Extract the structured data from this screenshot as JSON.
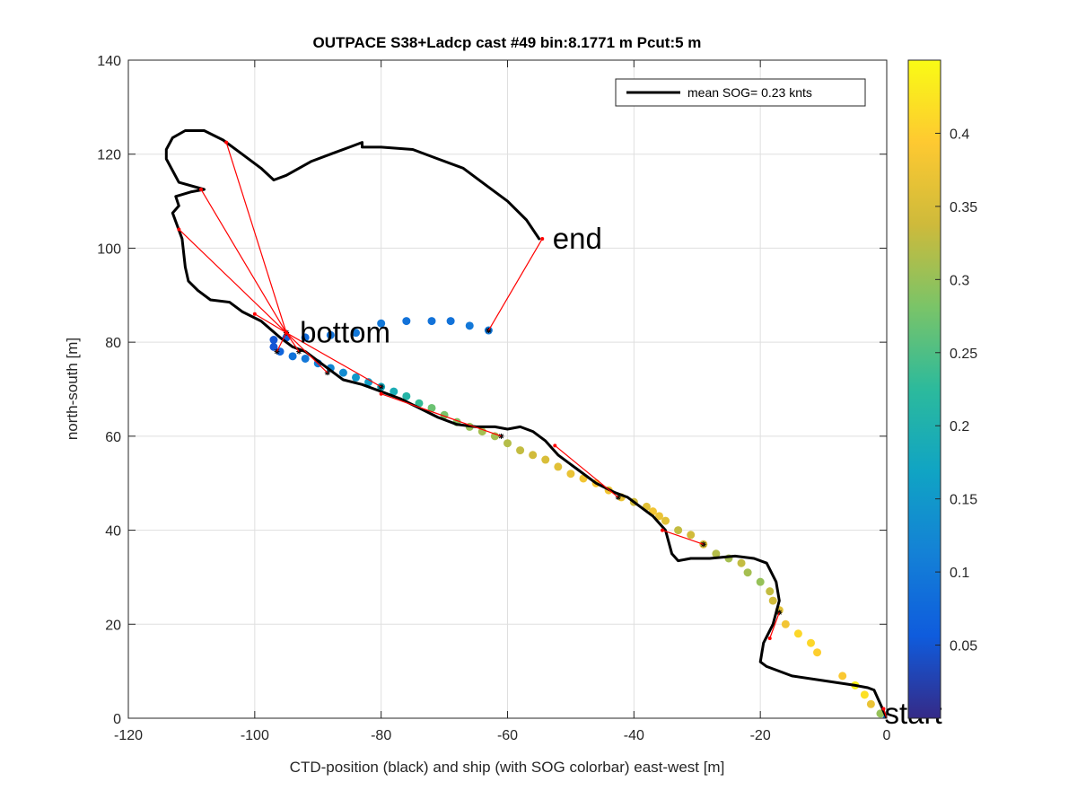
{
  "chart_data": {
    "type": "scatter",
    "title": "OUTPACE S38+Ladcp cast #49 bin:8.1771 m  Pcut:5 m",
    "xlabel": "CTD-position (black) and ship (with SOG colorbar) east-west [m]",
    "ylabel": "north-south [m]",
    "xlim": [
      -120,
      0
    ],
    "ylim": [
      0,
      140
    ],
    "xticks": [
      "-120",
      "-100",
      "-80",
      "-60",
      "-40",
      "-20",
      "0"
    ],
    "yticks": [
      "0",
      "20",
      "40",
      "60",
      "80",
      "100",
      "120",
      "140"
    ],
    "grid": true,
    "legend": {
      "placement": "top-right",
      "entry": "mean SOG=  0.23 knts"
    },
    "colorbar": {
      "range": [
        0,
        0.45
      ],
      "ticks": [
        "0.05",
        "0.1",
        "0.15",
        "0.2",
        "0.25",
        "0.3",
        "0.35",
        "0.4"
      ],
      "colormap": "parula"
    },
    "annotations": [
      {
        "text": "end",
        "x": -54,
        "y": 102
      },
      {
        "text": "bottom",
        "x": -94,
        "y": 82
      },
      {
        "text": "start",
        "x": -1.5,
        "y": 1
      }
    ],
    "ctd_track": {
      "name": "CTD-position",
      "color": "#000000",
      "x": [
        0,
        -1,
        -2,
        -3,
        -5,
        -10,
        -15,
        -19,
        -20,
        -19.5,
        -18,
        -17,
        -17.5,
        -19,
        -21,
        -24,
        -28,
        -31,
        -33,
        -34,
        -35,
        -37,
        -39,
        -41,
        -43,
        -46,
        -49,
        -52,
        -54,
        -56,
        -58,
        -60,
        -62,
        -65,
        -68,
        -71,
        -74,
        -77,
        -80,
        -83,
        -86,
        -88,
        -90,
        -92,
        -94,
        -96,
        -99,
        -102,
        -104,
        -107,
        -109,
        -110.5,
        -111,
        -111.5,
        -113,
        -112,
        -112.5,
        -110,
        -108,
        -112,
        -114,
        -114,
        -113,
        -111,
        -108,
        -105,
        -102,
        -99,
        -97,
        -95,
        -93,
        -91,
        -88,
        -85,
        -83,
        -83,
        -80,
        -75,
        -71,
        -67,
        -63,
        -60,
        -57,
        -55
      ],
      "y": [
        0,
        3,
        6,
        6.5,
        7,
        8,
        9,
        11,
        12,
        16,
        20,
        25,
        29,
        33,
        34,
        34.5,
        34,
        34,
        33.5,
        35,
        40,
        43,
        45,
        47,
        48,
        50,
        53,
        56,
        59,
        61,
        62,
        61.5,
        62,
        62,
        62.5,
        64,
        66,
        68,
        69.5,
        71,
        72,
        74,
        76,
        78,
        79,
        81,
        84.5,
        86.5,
        88.5,
        89,
        91,
        93,
        96,
        102,
        107.5,
        109,
        111,
        112,
        112.5,
        114,
        119,
        121,
        123.5,
        125,
        125,
        123,
        120,
        117,
        114.5,
        115.5,
        117,
        118.5,
        120,
        121.5,
        122.5,
        121.5,
        121.5,
        121,
        119,
        117,
        113,
        110,
        106,
        102
      ]
    },
    "ship_track": {
      "name": "ship (with SOG colorbar)",
      "x": [
        0,
        -1,
        -2.5,
        -3.5,
        -5,
        -7,
        -11,
        -12,
        -14,
        -16,
        -17,
        -18,
        -18.5,
        -20,
        -22,
        -23,
        -25,
        -27,
        -29,
        -31,
        -33,
        -35,
        -36,
        -37,
        -38,
        -40,
        -42,
        -44,
        -46,
        -48,
        -50,
        -52,
        -54,
        -56,
        -58,
        -60,
        -62,
        -64,
        -66,
        -68,
        -70,
        -72,
        -74,
        -76,
        -78,
        -80,
        -82,
        -84,
        -86,
        -88,
        -90,
        -92,
        -94,
        -96,
        -97,
        -97,
        -95,
        -92,
        -88,
        -84,
        -80,
        -76,
        -72,
        -69,
        -66,
        -63
      ],
      "y": [
        0,
        1,
        3,
        5,
        7,
        9,
        14,
        16,
        18,
        20,
        23,
        25,
        27,
        29,
        31,
        33,
        34,
        35,
        37,
        39,
        40,
        42,
        43,
        44,
        45,
        46,
        47,
        48.5,
        50,
        51,
        52,
        53.5,
        55,
        56,
        57,
        58.5,
        60,
        61,
        62,
        63,
        64.5,
        66,
        67,
        68.5,
        69.5,
        70.5,
        71.5,
        72.5,
        73.5,
        74.5,
        75.5,
        76.5,
        77,
        78,
        79,
        80.5,
        81,
        81,
        81.5,
        82,
        84,
        84.5,
        84.5,
        84.5,
        83.5,
        82.5
      ],
      "sog": [
        0.12,
        0.3,
        0.37,
        0.42,
        0.44,
        0.39,
        0.4,
        0.41,
        0.41,
        0.38,
        0.36,
        0.34,
        0.33,
        0.3,
        0.31,
        0.33,
        0.31,
        0.32,
        0.35,
        0.34,
        0.33,
        0.36,
        0.37,
        0.38,
        0.36,
        0.34,
        0.37,
        0.38,
        0.39,
        0.38,
        0.37,
        0.36,
        0.35,
        0.34,
        0.33,
        0.32,
        0.31,
        0.31,
        0.3,
        0.29,
        0.28,
        0.27,
        0.23,
        0.21,
        0.19,
        0.18,
        0.16,
        0.15,
        0.13,
        0.12,
        0.11,
        0.1,
        0.09,
        0.07,
        0.05,
        0.05,
        0.06,
        0.08,
        0.09,
        0.1,
        0.1,
        0.09,
        0.09,
        0.09,
        0.1,
        0.1
      ]
    },
    "bin_connectors": {
      "color": "#ff0000",
      "segments": [
        [
          [
            0,
            0
          ],
          [
            -0.5,
            2
          ]
        ],
        [
          [
            -17,
            22.5
          ],
          [
            -18.5,
            17
          ]
        ],
        [
          [
            -29,
            37
          ],
          [
            -35.5,
            40
          ]
        ],
        [
          [
            -42.5,
            47
          ],
          [
            -52.5,
            58
          ]
        ],
        [
          [
            -61,
            60
          ],
          [
            -80,
            69
          ]
        ],
        [
          [
            -80,
            70.5
          ],
          [
            -95,
            82
          ]
        ],
        [
          [
            -88.5,
            73.5
          ],
          [
            -95,
            82
          ]
        ],
        [
          [
            -93,
            78
          ],
          [
            -95,
            82
          ]
        ],
        [
          [
            -96.5,
            78
          ],
          [
            -95,
            82
          ]
        ],
        [
          [
            -95,
            82
          ],
          [
            -104.5,
            122.5
          ]
        ],
        [
          [
            -95,
            82
          ],
          [
            -108.5,
            112.5
          ]
        ],
        [
          [
            -95,
            82
          ],
          [
            -112,
            104
          ]
        ],
        [
          [
            -95,
            82
          ],
          [
            -100,
            86
          ]
        ],
        [
          [
            -63,
            82.5
          ],
          [
            -54.5,
            102
          ]
        ]
      ]
    }
  }
}
